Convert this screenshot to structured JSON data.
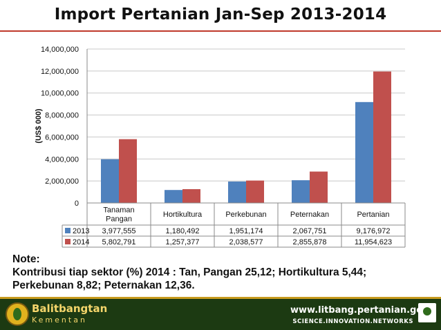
{
  "title": "Import Pertanian Jan-Sep 2013-2014",
  "chart_data": {
    "type": "bar",
    "title": "Import Pertanian Jan-Sep 2013-2014",
    "ylabel": "(US$ 000)",
    "xlabel": "",
    "ylim": [
      0,
      14000000
    ],
    "yticks": [
      "0",
      "2,000,000",
      "4,000,000",
      "6,000,000",
      "8,000,000",
      "10,000,000",
      "12,000,000",
      "14,000,000"
    ],
    "categories": [
      [
        "Tanaman",
        "Pangan"
      ],
      [
        "Hortikultura"
      ],
      [
        "Perkebunan"
      ],
      [
        "Peternakan"
      ],
      [
        "Pertanian"
      ]
    ],
    "series": [
      {
        "name": "2013",
        "color": "#4f81bd",
        "values": [
          3977555,
          1180492,
          1951174,
          2067751,
          9176972
        ],
        "labels": [
          "3,977,555",
          "1,180,492",
          "1,951,174",
          "2,067,751",
          "9,176,972"
        ]
      },
      {
        "name": "2014",
        "color": "#c0504d",
        "values": [
          5802791,
          1257377,
          2038577,
          2855878,
          11954623
        ],
        "labels": [
          "5,802,791",
          "1,257,377",
          "2,038,577",
          "2,855,878",
          "11,954,623"
        ]
      }
    ],
    "grid": true,
    "legend": "data-table"
  },
  "note": {
    "heading": "Note:",
    "lines": [
      "Kontribusi tiap sektor (%) 2014 : Tan, Pangan 25,12; Hortikultura 5,44;",
      "Perkebunan 8,82; Peternakan 12,36."
    ]
  },
  "footer": {
    "org_line1": "Balitbangtan",
    "org_line2": "Kementan",
    "url": "www.litbang.pertanian.go.id",
    "slogan": "SCIENCE.INNOVATION.NETWORKS"
  },
  "colors": {
    "accent_rule": "#c0392b",
    "footer_bg": "#1c3a12",
    "footer_gold": "#f5d66b"
  }
}
